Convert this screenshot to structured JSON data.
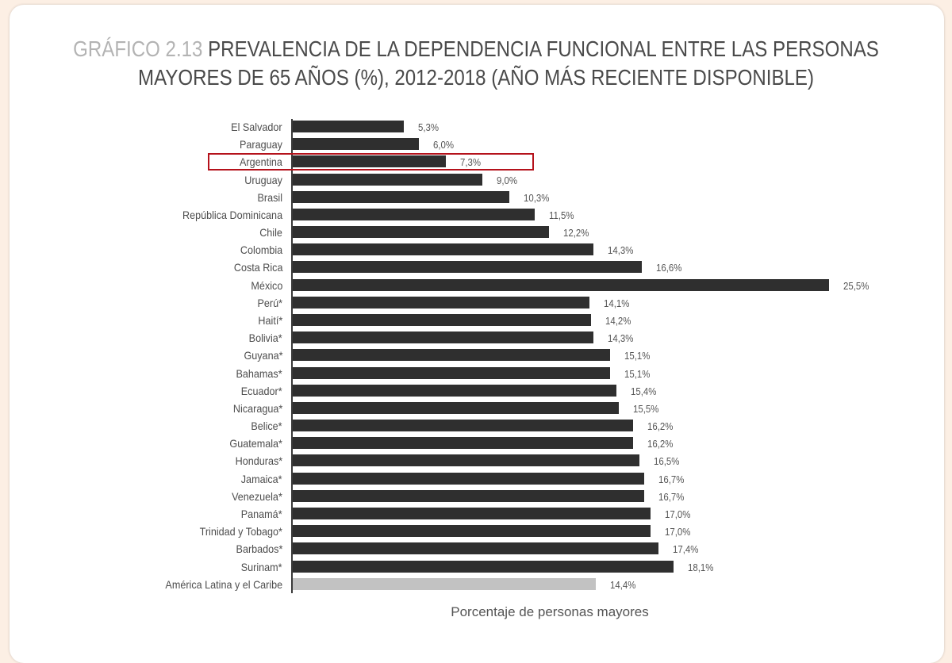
{
  "page": {
    "background_color": "#fcefe4",
    "card_color": "#ffffff"
  },
  "title": {
    "prefix": "GRÁFICO 2.13",
    "line1": "PREVALENCIA DE LA DEPENDENCIA FUNCIONAL ENTRE LAS PERSONAS",
    "line2": "MAYORES DE 65 AÑOS (%), 2012-2018 (AÑO MÁS RECIENTE DISPONIBLE)"
  },
  "highlight": {
    "category": "Argentina",
    "color": "#b5121b"
  },
  "colors": {
    "bar": "#2f2f2f",
    "average_bar": "#c2c2c2"
  },
  "chart_data": {
    "type": "bar",
    "orientation": "horizontal",
    "title": "GRÁFICO 2.13 PREVALENCIA DE LA DEPENDENCIA FUNCIONAL ENTRE LAS PERSONAS MAYORES DE 65 AÑOS (%), 2012-2018 (AÑO MÁS RECIENTE DISPONIBLE)",
    "xlabel": "Porcentaje de personas mayores",
    "ylabel": "",
    "xlim": [
      0,
      27
    ],
    "grid": false,
    "legend": null,
    "categories": [
      "El Salvador",
      "Paraguay",
      "Argentina",
      "Uruguay",
      "Brasil",
      "República Dominicana",
      "Chile",
      "Colombia",
      "Costa Rica",
      "México",
      "Perú*",
      "Haití*",
      "Bolivia*",
      "Guyana*",
      "Bahamas*",
      "Ecuador*",
      "Nicaragua*",
      "Belice*",
      "Guatemala*",
      "Honduras*",
      "Jamaica*",
      "Venezuela*",
      "Panamá*",
      "Trinidad y Tobago*",
      "Barbados*",
      "Surinam*",
      "América Latina y el Caribe"
    ],
    "values": [
      5.3,
      6.0,
      7.3,
      9.0,
      10.3,
      11.5,
      12.2,
      14.3,
      16.6,
      25.5,
      14.1,
      14.2,
      14.3,
      15.1,
      15.1,
      15.4,
      15.5,
      16.2,
      16.2,
      16.5,
      16.7,
      16.7,
      17.0,
      17.0,
      17.4,
      18.1,
      14.4
    ],
    "value_labels": [
      "5,3%",
      "6,0%",
      "7,3%",
      "9,0%",
      "10,3%",
      "11,5%",
      "12,2%",
      "14,3%",
      "16,6%",
      "25,5%",
      "14,1%",
      "14,2%",
      "14,3%",
      "15,1%",
      "15,1%",
      "15,4%",
      "15,5%",
      "16,2%",
      "16,2%",
      "16,5%",
      "16,7%",
      "16,7%",
      "17,0%",
      "17,0%",
      "17,4%",
      "18,1%",
      "14,4%"
    ],
    "annotations": [
      {
        "type": "highlight-box",
        "target": "Argentina",
        "color": "#b5121b"
      },
      {
        "type": "average-bar",
        "target": "América Latina y el Caribe",
        "color": "#c2c2c2"
      }
    ]
  }
}
